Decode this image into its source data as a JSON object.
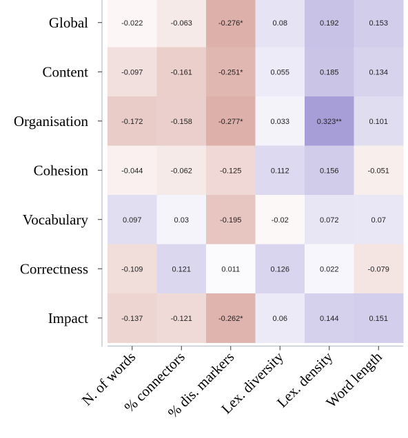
{
  "chart_data": {
    "type": "heatmap",
    "rows": [
      "Global",
      "Content",
      "Organisation",
      "Cohesion",
      "Vocabulary",
      "Correctness",
      "Impact"
    ],
    "columns": [
      "N. of words",
      "% connectors",
      "% dis. markers",
      "Lex. diversity",
      "Lex. density",
      "Word length"
    ],
    "values": [
      [
        -0.022,
        -0.063,
        -0.276,
        0.08,
        0.192,
        0.153
      ],
      [
        -0.097,
        -0.161,
        -0.251,
        0.055,
        0.185,
        0.134
      ],
      [
        -0.172,
        -0.158,
        -0.277,
        0.033,
        0.323,
        0.101
      ],
      [
        -0.044,
        -0.062,
        -0.125,
        0.112,
        0.156,
        -0.051
      ],
      [
        0.097,
        0.03,
        -0.195,
        -0.02,
        0.072,
        0.07
      ],
      [
        -0.109,
        0.121,
        0.011,
        0.126,
        0.022,
        -0.079
      ],
      [
        -0.137,
        -0.121,
        -0.262,
        0.06,
        0.144,
        0.151
      ]
    ],
    "labels": [
      [
        "-0.022",
        "-0.063",
        "-0.276*",
        "0.08",
        "0.192",
        "0.153"
      ],
      [
        "-0.097",
        "-0.161",
        "-0.251*",
        "0.055",
        "0.185",
        "0.134"
      ],
      [
        "-0.172",
        "-0.158",
        "-0.277*",
        "0.033",
        "0.323**",
        "0.101"
      ],
      [
        "-0.044",
        "-0.062",
        "-0.125",
        "0.112",
        "0.156",
        "-0.051"
      ],
      [
        "0.097",
        "0.03",
        "-0.195",
        "-0.02",
        "0.072",
        "0.07"
      ],
      [
        "-0.109",
        "0.121",
        "0.011",
        "0.126",
        "0.022",
        "-0.079"
      ],
      [
        "-0.137",
        "-0.121",
        "-0.262*",
        "0.06",
        "0.144",
        "0.151"
      ]
    ],
    "color_range": [
      -0.33,
      0.33
    ],
    "colors": {
      "negative": "#c06a5e",
      "zero": "#ffffff",
      "positive": "#6f5fbf",
      "axis": "#b8bfc6"
    }
  }
}
